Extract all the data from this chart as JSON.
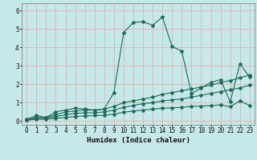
{
  "title": "",
  "xlabel": "Humidex (Indice chaleur)",
  "ylabel": "",
  "background_color": "#c5e8e8",
  "grid_color": "#e0b8b8",
  "line_color": "#1a6b5a",
  "x_ticks": [
    0,
    1,
    2,
    3,
    4,
    5,
    6,
    7,
    8,
    9,
    10,
    11,
    12,
    13,
    14,
    15,
    16,
    17,
    18,
    19,
    20,
    21,
    22,
    23
  ],
  "y_ticks": [
    0,
    1,
    2,
    3,
    4,
    5,
    6
  ],
  "ylim": [
    -0.2,
    6.4
  ],
  "xlim": [
    -0.5,
    23.5
  ],
  "series": [
    [
      0.1,
      0.3,
      0.2,
      0.5,
      0.6,
      0.7,
      0.65,
      0.6,
      0.65,
      1.55,
      4.8,
      5.35,
      5.4,
      5.2,
      5.65,
      4.05,
      3.8,
      1.5,
      1.8,
      2.1,
      2.25,
      1.05,
      3.1,
      2.4
    ],
    [
      0.1,
      0.2,
      0.2,
      0.35,
      0.5,
      0.55,
      0.6,
      0.6,
      0.65,
      0.8,
      1.0,
      1.1,
      1.2,
      1.3,
      1.45,
      1.55,
      1.65,
      1.75,
      1.85,
      1.95,
      2.1,
      2.2,
      2.35,
      2.5
    ],
    [
      0.05,
      0.15,
      0.15,
      0.25,
      0.35,
      0.42,
      0.45,
      0.45,
      0.5,
      0.6,
      0.75,
      0.85,
      0.95,
      1.0,
      1.1,
      1.15,
      1.2,
      1.3,
      1.4,
      1.5,
      1.6,
      1.7,
      1.8,
      1.95
    ],
    [
      0.05,
      0.1,
      0.1,
      0.15,
      0.2,
      0.25,
      0.28,
      0.3,
      0.32,
      0.38,
      0.48,
      0.55,
      0.6,
      0.65,
      0.7,
      0.72,
      0.75,
      0.8,
      0.82,
      0.84,
      0.88,
      0.78,
      1.1,
      0.85
    ]
  ],
  "tick_fontsize": 5.5,
  "xlabel_fontsize": 6.5
}
